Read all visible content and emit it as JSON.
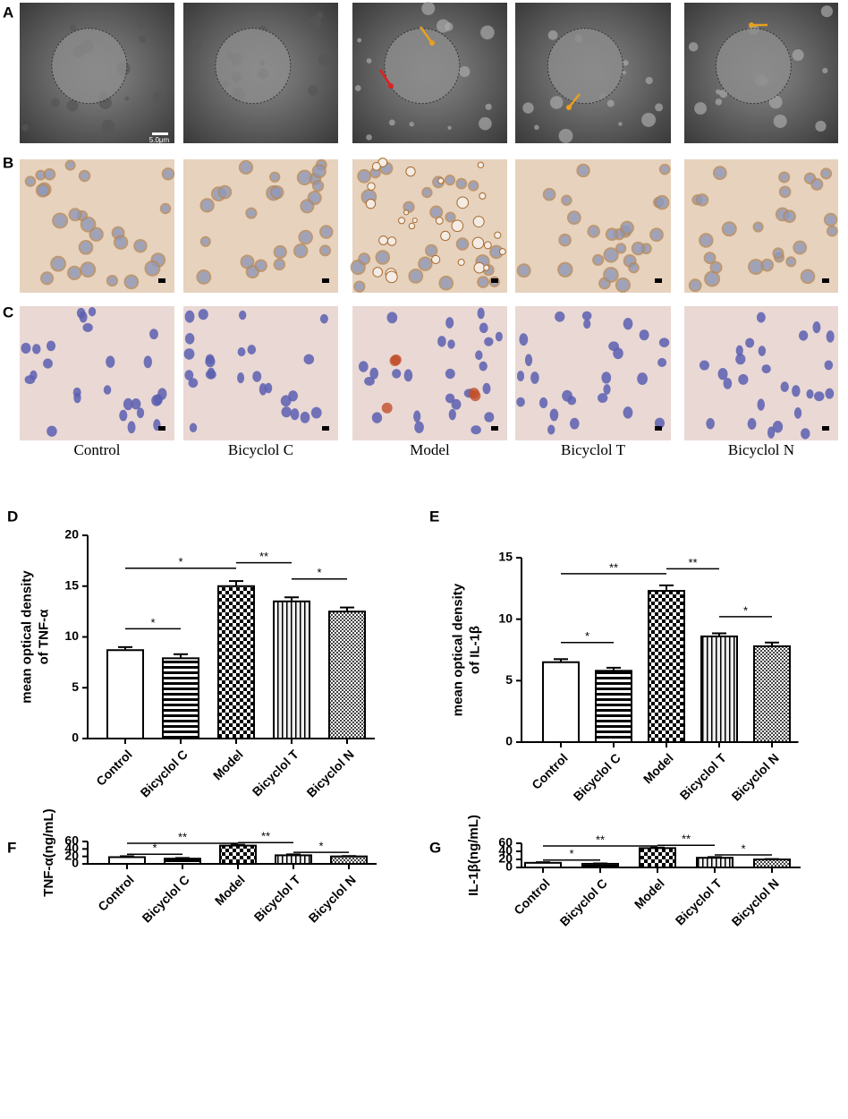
{
  "figure": {
    "panel_labels": [
      "A",
      "B",
      "C"
    ],
    "groups": [
      "Control",
      "Bicyclol C",
      "Model",
      "Bicyclol T",
      "Bicyclol N"
    ],
    "scale_bar": "5.0μm"
  },
  "chart_data": [
    {
      "type": "bar",
      "panel": "D",
      "ylabel": [
        "mean optical density",
        "of TNF-α"
      ],
      "categories": [
        "Control",
        "Bicyclol C",
        "Model",
        "Bicyclol T",
        "Bicyclol N"
      ],
      "values": [
        8.7,
        7.9,
        15.0,
        13.5,
        12.5
      ],
      "errors": [
        0.3,
        0.4,
        0.5,
        0.4,
        0.4
      ],
      "color": "#000000",
      "ylim": [
        0,
        20
      ],
      "yticks": [
        0,
        5,
        10,
        15,
        20
      ],
      "annotations": [
        {
          "text": "*",
          "from": "Control",
          "to": "Bicyclol C"
        },
        {
          "text": "*",
          "from": "Control",
          "to": "Model"
        },
        {
          "text": "**",
          "from": "Model",
          "to": "Bicyclol T"
        },
        {
          "text": "*",
          "from": "Bicyclol T",
          "to": "Bicyclol N"
        }
      ]
    },
    {
      "type": "bar",
      "panel": "E",
      "ylabel": [
        "mean optical density",
        "of IL-1β"
      ],
      "categories": [
        "Control",
        "Bicyclol C",
        "Model",
        "Bicyclol T",
        "Bicyclol N"
      ],
      "values": [
        6.5,
        5.8,
        12.3,
        8.6,
        7.8
      ],
      "errors": [
        0.25,
        0.25,
        0.45,
        0.25,
        0.3
      ],
      "color": "#000000",
      "ylim": [
        0,
        15
      ],
      "yticks": [
        0,
        5,
        10,
        15
      ],
      "annotations": [
        {
          "text": "*",
          "from": "Control",
          "to": "Bicyclol C"
        },
        {
          "text": "**",
          "from": "Control",
          "to": "Model"
        },
        {
          "text": "**",
          "from": "Model",
          "to": "Bicyclol T"
        },
        {
          "text": "*",
          "from": "Bicyclol T",
          "to": "Bicyclol N"
        }
      ]
    },
    {
      "type": "bar",
      "panel": "F",
      "ylabel": [
        "TNF-α(ng/mL)"
      ],
      "categories": [
        "Control",
        "Bicyclol C",
        "Model",
        "Bicyclol T",
        "Bicyclol N"
      ],
      "values": [
        18,
        14,
        49,
        23,
        20
      ],
      "errors": [
        2.5,
        1.8,
        2.5,
        2.5,
        1
      ],
      "color": "#000000",
      "ylim": [
        0,
        60
      ],
      "yticks": [
        0,
        20,
        40,
        60
      ],
      "annotations": [
        {
          "text": "*",
          "from": "Control",
          "to": "Bicyclol C"
        },
        {
          "text": "**",
          "from": "Control",
          "to": "Model"
        },
        {
          "text": "**",
          "from": "Model",
          "to": "Bicyclol T"
        },
        {
          "text": "*",
          "from": "Bicyclol T",
          "to": "Bicyclol N"
        }
      ]
    },
    {
      "type": "bar",
      "panel": "G",
      "ylabel": [
        "IL-1β(ng/mL)"
      ],
      "categories": [
        "Control",
        "Bicyclol C",
        "Model",
        "Bicyclol T",
        "Bicyclol N"
      ],
      "values": [
        11.5,
        9,
        48,
        24,
        19.8
      ],
      "errors": [
        1.5,
        1,
        1.5,
        1.8,
        1
      ],
      "color": "#000000",
      "ylim": [
        0,
        60
      ],
      "yticks": [
        0,
        20,
        40,
        60
      ],
      "annotations": [
        {
          "text": "*",
          "from": "Control",
          "to": "Bicyclol C"
        },
        {
          "text": "**",
          "from": "Control",
          "to": "Model"
        },
        {
          "text": "**",
          "from": "Model",
          "to": "Bicyclol T"
        },
        {
          "text": "*",
          "from": "Bicyclol T",
          "to": "Bicyclol N"
        }
      ]
    }
  ]
}
